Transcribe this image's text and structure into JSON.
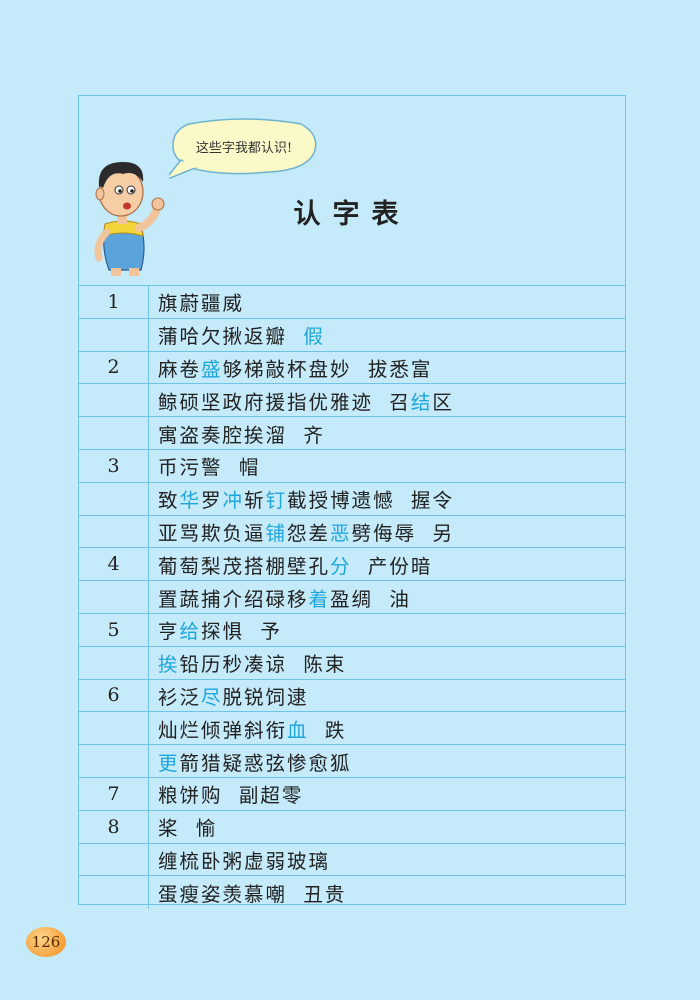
{
  "header": {
    "speech": "这些字我都认识!",
    "title": "认字表"
  },
  "rows": [
    {
      "num": "1",
      "parts": [
        {
          "t": "旗蔚疆威"
        }
      ]
    },
    {
      "num": "",
      "parts": [
        {
          "t": "蒲哈欠揪返瓣  "
        },
        {
          "t": "假",
          "hl": true
        }
      ]
    },
    {
      "num": "2",
      "parts": [
        {
          "t": "麻卷"
        },
        {
          "t": "盛",
          "hl": true
        },
        {
          "t": "够梯敲杯盘妙  拔悉富"
        }
      ]
    },
    {
      "num": "",
      "parts": [
        {
          "t": "鲸硕坚政府援指优雅迹  召"
        },
        {
          "t": "结",
          "hl": true
        },
        {
          "t": "区"
        }
      ]
    },
    {
      "num": "",
      "parts": [
        {
          "t": "寓盗奏腔挨溜  齐"
        }
      ]
    },
    {
      "num": "3",
      "parts": [
        {
          "t": "币污警  帽"
        }
      ]
    },
    {
      "num": "",
      "parts": [
        {
          "t": "致"
        },
        {
          "t": "华",
          "hl": true
        },
        {
          "t": "罗"
        },
        {
          "t": "冲",
          "hl": true
        },
        {
          "t": "斩"
        },
        {
          "t": "钉",
          "hl": true
        },
        {
          "t": "截授博遗憾  握令"
        }
      ]
    },
    {
      "num": "",
      "parts": [
        {
          "t": "亚骂欺负逼"
        },
        {
          "t": "铺",
          "hl": true
        },
        {
          "t": "怨差"
        },
        {
          "t": "恶",
          "hl": true
        },
        {
          "t": "劈侮辱  另"
        }
      ]
    },
    {
      "num": "4",
      "parts": [
        {
          "t": "葡萄梨茂搭棚壁孔"
        },
        {
          "t": "分",
          "hl": true
        },
        {
          "t": "  产份暗"
        }
      ]
    },
    {
      "num": "",
      "parts": [
        {
          "t": "置蔬捕介绍碌移"
        },
        {
          "t": "着",
          "hl": true
        },
        {
          "t": "盈绸  油"
        }
      ]
    },
    {
      "num": "5",
      "parts": [
        {
          "t": "亨"
        },
        {
          "t": "给",
          "hl": true
        },
        {
          "t": "探惧  予"
        }
      ]
    },
    {
      "num": "",
      "parts": [
        {
          "t": "挨",
          "hl": true
        },
        {
          "t": "铅历秒凑谅  陈束"
        }
      ]
    },
    {
      "num": "6",
      "parts": [
        {
          "t": "衫泛"
        },
        {
          "t": "尽",
          "hl": true
        },
        {
          "t": "脱锐饲逮"
        }
      ]
    },
    {
      "num": "",
      "parts": [
        {
          "t": "灿烂倾弹斜衔"
        },
        {
          "t": "血",
          "hl": true
        },
        {
          "t": "  跌"
        }
      ]
    },
    {
      "num": "",
      "parts": [
        {
          "t": "更",
          "hl": true
        },
        {
          "t": "箭猎疑惑弦惨愈狐"
        }
      ]
    },
    {
      "num": "7",
      "parts": [
        {
          "t": "粮饼购  副超零"
        }
      ]
    },
    {
      "num": "8",
      "parts": [
        {
          "t": "桨  愉"
        }
      ]
    },
    {
      "num": "",
      "parts": [
        {
          "t": "缠梳卧粥虚弱玻璃"
        }
      ]
    },
    {
      "num": "",
      "parts": [
        {
          "t": "蛋瘦姿羡慕嘲  丑贵"
        }
      ]
    }
  ],
  "page_number": "126",
  "colors": {
    "background": "#c5eaf9",
    "rule_lines": "#6fc3e6",
    "highlight_text": "#1fa6dc"
  },
  "icons": {
    "character": "cartoon-boy-icon",
    "bubble": "speech-bubble-icon",
    "page_badge": "page-number-badge"
  }
}
